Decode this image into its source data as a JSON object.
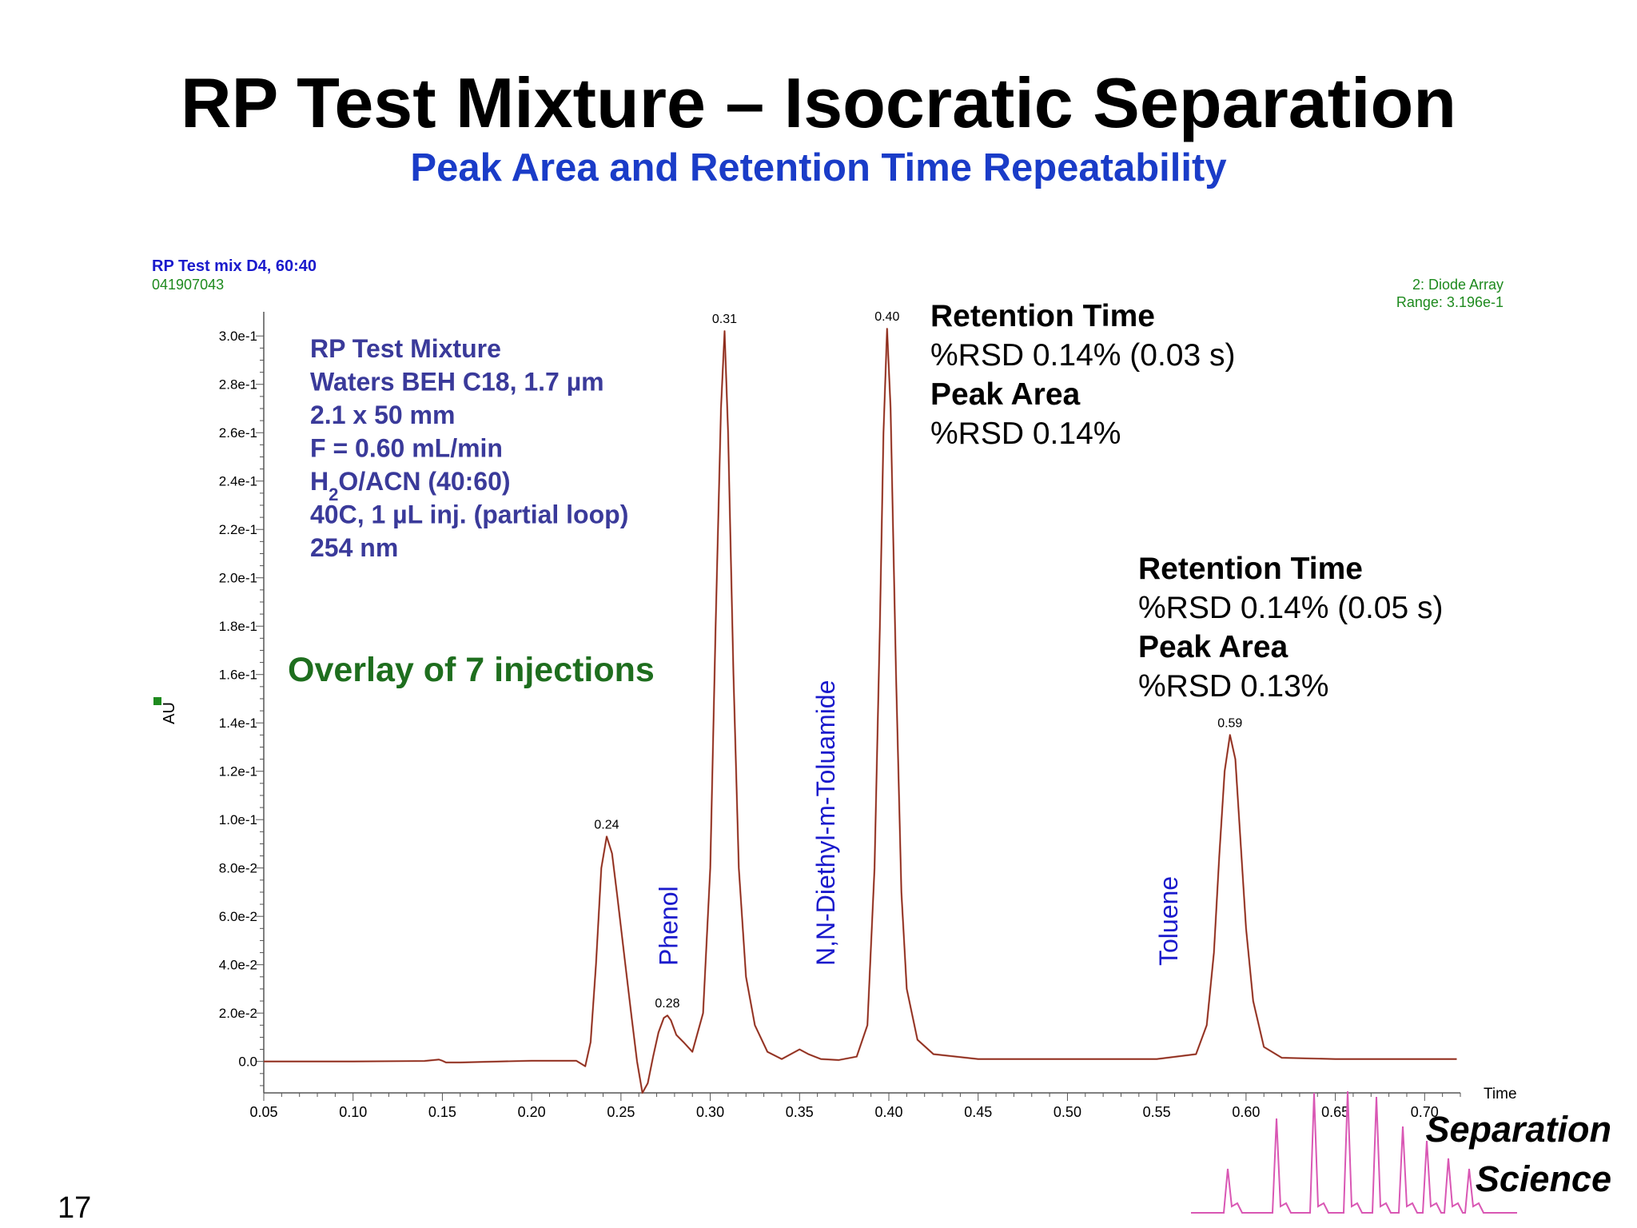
{
  "slide": {
    "title": "RP Test Mixture – Isocratic Separation",
    "subtitle": "Peak Area and Retention Time Repeatability",
    "page_number": "17"
  },
  "chromatogram_header": {
    "sample": "RP Test mix D4, 60:40",
    "file_id": "041907043",
    "detector": "2: Diode Array",
    "range": "Range: 3.196e-1"
  },
  "conditions": [
    {
      "text": "RP Test Mixture"
    },
    {
      "text": "Waters BEH C18, 1.7 µm"
    },
    {
      "text": "2.1 x 50 mm"
    },
    {
      "text": "F = 0.60 mL/min"
    },
    {
      "pre": "H",
      "sub": "2",
      "post": "O/ACN (40:60)"
    },
    {
      "text": "40C, 1 µL inj. (partial loop)"
    },
    {
      "text": "254 nm"
    }
  ],
  "overlay_label": "Overlay of 7 injections",
  "stats": [
    {
      "rt_heading": "Retention Time",
      "rt_value": "%RSD 0.14% (0.03 s)",
      "area_heading": "Peak Area",
      "area_value": "%RSD 0.14%"
    },
    {
      "rt_heading": "Retention Time",
      "rt_value": "%RSD 0.14% (0.05 s)",
      "area_heading": "Peak Area",
      "area_value": "%RSD 0.13%"
    }
  ],
  "logo": {
    "line1": "Separation",
    "line2": "Science",
    "color": "#d957b4"
  },
  "colors": {
    "trace": "#8b2a1a",
    "compound_labels": "#1a1acc",
    "conditions_text": "#3a3a9a",
    "overlay_text": "#1e6e1e",
    "header_green": "#1e8a1e",
    "header_blue": "#1a1acc"
  },
  "chart_data": {
    "type": "line",
    "xlabel": "Time",
    "ylabel": "AU",
    "xlim": [
      0.05,
      0.72
    ],
    "ylim": [
      -0.013,
      0.31
    ],
    "x_ticks": [
      "0.05",
      "0.10",
      "0.15",
      "0.20",
      "0.25",
      "0.30",
      "0.35",
      "0.40",
      "0.45",
      "0.50",
      "0.55",
      "0.60",
      "0.65",
      "0.70"
    ],
    "y_ticks": [
      {
        "value": 0.0,
        "label": "0.0"
      },
      {
        "value": 0.02,
        "label": "2.0e-2"
      },
      {
        "value": 0.04,
        "label": "4.0e-2"
      },
      {
        "value": 0.06,
        "label": "6.0e-2"
      },
      {
        "value": 0.08,
        "label": "8.0e-2"
      },
      {
        "value": 0.1,
        "label": "1.0e-1"
      },
      {
        "value": 0.12,
        "label": "1.2e-1"
      },
      {
        "value": 0.14,
        "label": "1.4e-1"
      },
      {
        "value": 0.16,
        "label": "1.6e-1"
      },
      {
        "value": 0.18,
        "label": "1.8e-1"
      },
      {
        "value": 0.2,
        "label": "2.0e-1"
      },
      {
        "value": 0.22,
        "label": "2.2e-1"
      },
      {
        "value": 0.24,
        "label": "2.4e-1"
      },
      {
        "value": 0.26,
        "label": "2.6e-1"
      },
      {
        "value": 0.28,
        "label": "2.8e-1"
      },
      {
        "value": 0.3,
        "label": "3.0e-1"
      }
    ],
    "peaks": [
      {
        "rt": 0.242,
        "height": 0.093,
        "label": "0.24"
      },
      {
        "rt": 0.276,
        "height": 0.019,
        "label": "0.28"
      },
      {
        "rt": 0.308,
        "height": 0.302,
        "label": "0.31"
      },
      {
        "rt": 0.399,
        "height": 0.303,
        "label": "0.40"
      },
      {
        "rt": 0.591,
        "height": 0.135,
        "label": "0.59"
      }
    ],
    "compounds": [
      {
        "name": "Phenol",
        "rt": 0.278
      },
      {
        "name": "N,N-Diethyl-m-Toluamide",
        "rt": 0.366
      },
      {
        "name": "Toluene",
        "rt": 0.558
      }
    ],
    "series": [
      {
        "x": [
          0.05,
          0.1,
          0.14,
          0.148,
          0.15,
          0.152,
          0.16,
          0.2,
          0.225,
          0.23,
          0.233,
          0.236,
          0.239,
          0.242,
          0.245,
          0.248,
          0.252,
          0.256,
          0.259,
          0.262,
          0.265,
          0.268,
          0.271,
          0.274,
          0.276,
          0.278,
          0.281,
          0.285,
          0.29,
          0.296,
          0.3,
          0.303,
          0.306,
          0.308,
          0.31,
          0.313,
          0.316,
          0.32,
          0.325,
          0.332,
          0.34,
          0.35,
          0.355,
          0.362,
          0.372,
          0.382,
          0.388,
          0.392,
          0.395,
          0.397,
          0.399,
          0.401,
          0.404,
          0.407,
          0.41,
          0.416,
          0.425,
          0.45,
          0.5,
          0.55,
          0.572,
          0.578,
          0.582,
          0.585,
          0.588,
          0.591,
          0.594,
          0.597,
          0.6,
          0.604,
          0.61,
          0.62,
          0.65,
          0.7,
          0.718
        ],
        "y": [
          0.0,
          0.0,
          0.0002,
          0.0008,
          0.0003,
          -0.0004,
          -0.0004,
          0.0003,
          0.0003,
          -0.002,
          0.008,
          0.04,
          0.08,
          0.093,
          0.086,
          0.068,
          0.043,
          0.018,
          0.0,
          -0.013,
          -0.009,
          0.002,
          0.012,
          0.018,
          0.019,
          0.017,
          0.011,
          0.008,
          0.004,
          0.02,
          0.08,
          0.18,
          0.27,
          0.302,
          0.26,
          0.16,
          0.08,
          0.035,
          0.015,
          0.004,
          0.001,
          0.005,
          0.003,
          0.001,
          0.0006,
          0.002,
          0.015,
          0.08,
          0.18,
          0.26,
          0.303,
          0.27,
          0.16,
          0.07,
          0.03,
          0.009,
          0.003,
          0.001,
          0.001,
          0.001,
          0.003,
          0.015,
          0.045,
          0.085,
          0.12,
          0.135,
          0.125,
          0.09,
          0.055,
          0.025,
          0.006,
          0.0015,
          0.001,
          0.001,
          0.001
        ]
      }
    ]
  }
}
